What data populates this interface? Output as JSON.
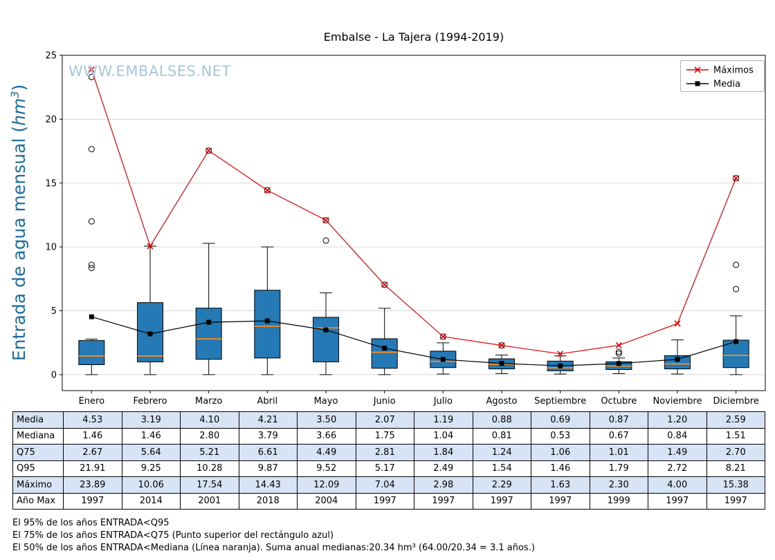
{
  "title": "Embalse - La Tajera (1994-2019)",
  "watermark": {
    "text": "WWW.EMBALSES.NET",
    "color": "#a5c8dd"
  },
  "ylabel_color": "#1b6d9e",
  "chart_data": {
    "type": "boxplot",
    "title": "Embalse - La Tajera (1994-2019)",
    "ylabel": "Entrada de agua mensual (hm³)",
    "xlabel": "",
    "ylim": [
      0,
      25
    ],
    "yticks": [
      0,
      5,
      10,
      15,
      20,
      25
    ],
    "grid": true,
    "legend_position": "upper right",
    "categories": [
      "Enero",
      "Febrero",
      "Marzo",
      "Abril",
      "Mayo",
      "Junio",
      "Julio",
      "Agosto",
      "Septiembre",
      "Octubre",
      "Noviembre",
      "Diciembre"
    ],
    "series": [
      {
        "name": "Máximos",
        "type": "line",
        "color": "#e60000",
        "marker": "x",
        "values": [
          23.89,
          10.06,
          17.54,
          14.43,
          12.09,
          7.04,
          2.98,
          2.29,
          1.63,
          2.3,
          4.0,
          15.38
        ]
      },
      {
        "name": "Media",
        "type": "line",
        "color": "#000000",
        "marker": "square",
        "values": [
          4.53,
          3.19,
          4.1,
          4.21,
          3.5,
          2.07,
          1.19,
          0.88,
          0.69,
          0.87,
          1.2,
          2.59
        ]
      }
    ],
    "boxplot": {
      "box_color": "#2579b5",
      "median_color": "#ff8c1a",
      "median": [
        1.46,
        1.46,
        2.8,
        3.79,
        3.66,
        1.75,
        1.04,
        0.81,
        0.53,
        0.67,
        0.84,
        1.51
      ],
      "q1": [
        0.78,
        1.0,
        1.2,
        1.3,
        1.0,
        0.5,
        0.55,
        0.45,
        0.3,
        0.4,
        0.45,
        0.55
      ],
      "q3": [
        2.67,
        5.64,
        5.21,
        6.61,
        4.49,
        2.81,
        1.84,
        1.24,
        1.06,
        1.01,
        1.49,
        2.7
      ],
      "whisker_low": [
        0.0,
        0.0,
        0.0,
        0.0,
        0.0,
        0.0,
        0.05,
        0.08,
        0.05,
        0.08,
        0.05,
        0.0
      ],
      "whisker_high": [
        2.78,
        10.06,
        10.28,
        10.0,
        6.4,
        5.2,
        2.49,
        1.54,
        1.46,
        1.3,
        2.72,
        4.6
      ],
      "outliers": [
        [
          8.35,
          8.6,
          12.0,
          17.65,
          23.3
        ],
        [],
        [
          17.54
        ],
        [
          14.43
        ],
        [
          10.5,
          12.09
        ],
        [
          7.04
        ],
        [
          2.98
        ],
        [
          2.29
        ],
        [],
        [
          1.65,
          1.79
        ],
        [],
        [
          6.7,
          8.6,
          15.38
        ]
      ]
    }
  },
  "table": {
    "row_headers": [
      "Media",
      "Mediana",
      "Q75",
      "Q95",
      "Máximo",
      "Año Max"
    ],
    "rows": [
      [
        "4.53",
        "3.19",
        "4.10",
        "4.21",
        "3.50",
        "2.07",
        "1.19",
        "0.88",
        "0.69",
        "0.87",
        "1.20",
        "2.59"
      ],
      [
        "1.46",
        "1.46",
        "2.80",
        "3.79",
        "3.66",
        "1.75",
        "1.04",
        "0.81",
        "0.53",
        "0.67",
        "0.84",
        "1.51"
      ],
      [
        "2.67",
        "5.64",
        "5.21",
        "6.61",
        "4.49",
        "2.81",
        "1.84",
        "1.24",
        "1.06",
        "1.01",
        "1.49",
        "2.70"
      ],
      [
        "21.91",
        "9.25",
        "10.28",
        "9.87",
        "9.52",
        "5.17",
        "2.49",
        "1.54",
        "1.46",
        "1.79",
        "2.72",
        "8.21"
      ],
      [
        "23.89",
        "10.06",
        "17.54",
        "14.43",
        "12.09",
        "7.04",
        "2.98",
        "2.29",
        "1.63",
        "2.30",
        "4.00",
        "15.38"
      ],
      [
        "1997",
        "2014",
        "2001",
        "2018",
        "2004",
        "1997",
        "1997",
        "1997",
        "1997",
        "1999",
        "1997",
        "1997"
      ]
    ]
  },
  "footnotes": [
    "El 95% de los años ENTRADA<Q95",
    "El 75% de los años ENTRADA<Q75 (Punto superior del rectángulo azul)",
    "El 50% de los años ENTRADA<Mediana (Línea naranja). Suma anual medianas:20.34 hm³ (64.00/20.34 = 3.1 años.)"
  ]
}
